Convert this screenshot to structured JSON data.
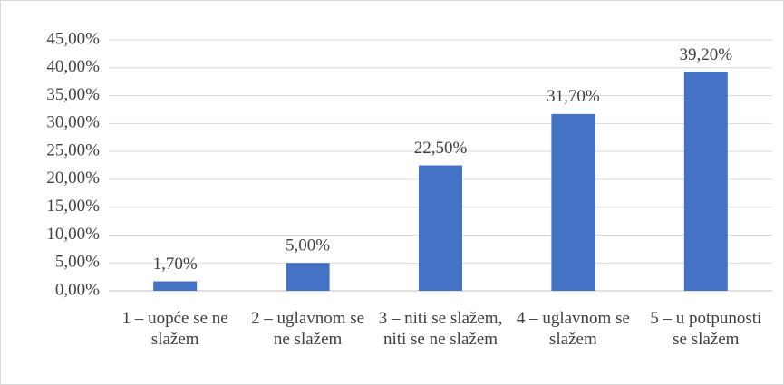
{
  "chart_data": {
    "type": "bar",
    "categories": [
      "1 – uopće se ne slažem",
      "2 – uglavnom se ne slažem",
      "3 – niti se slažem, niti se ne slažem",
      "4 – uglavnom se slažem",
      "5 – u potpunosti se slažem"
    ],
    "values": [
      1.7,
      5.0,
      22.5,
      31.7,
      39.2
    ],
    "value_labels": [
      "1,70%",
      "5,00%",
      "22,50%",
      "31,70%",
      "39,20%"
    ],
    "color": "#4472c4",
    "ylim": [
      0,
      45
    ],
    "yticks": [
      {
        "value": 0,
        "label": "0,00%"
      },
      {
        "value": 5,
        "label": "5,00%"
      },
      {
        "value": 10,
        "label": "10,00%"
      },
      {
        "value": 15,
        "label": "15,00%"
      },
      {
        "value": 20,
        "label": "20,00%"
      },
      {
        "value": 25,
        "label": "25,00%"
      },
      {
        "value": 30,
        "label": "30,00%"
      },
      {
        "value": 35,
        "label": "35,00%"
      },
      {
        "value": 40,
        "label": "40,00%"
      },
      {
        "value": 45,
        "label": "45,00%"
      }
    ],
    "grid": true
  }
}
